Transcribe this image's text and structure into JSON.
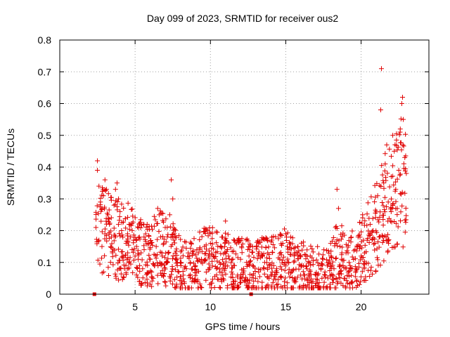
{
  "chart_data": {
    "type": "scatter",
    "title": "Day 099 of 2023, SRMTID for receiver ous2",
    "xlabel": "GPS time / hours",
    "ylabel": "SRMTID / TECUs",
    "xlim": [
      0,
      24.5
    ],
    "ylim": [
      0,
      0.8
    ],
    "x_ticks": [
      0,
      5,
      10,
      15,
      20
    ],
    "y_ticks": [
      0,
      0.1,
      0.2,
      0.3,
      0.4,
      0.5,
      0.6,
      0.7,
      0.8
    ],
    "grid": true,
    "marker": "plus",
    "color": "#e00000",
    "series": [
      {
        "name": "SRMTID",
        "points": [
          [
            2.4,
            0.21
          ],
          [
            2.5,
            0.42
          ],
          [
            2.5,
            0.39
          ],
          [
            2.6,
            0.34
          ],
          [
            2.7,
            0.29
          ],
          [
            2.8,
            0.27
          ],
          [
            2.9,
            0.31
          ],
          [
            3.0,
            0.36
          ],
          [
            3.1,
            0.33
          ],
          [
            3.2,
            0.25
          ],
          [
            2.6,
            0.17
          ],
          [
            2.8,
            0.15
          ],
          [
            3.0,
            0.19
          ],
          [
            3.3,
            0.22
          ],
          [
            3.5,
            0.13
          ],
          [
            3.6,
            0.28
          ],
          [
            3.7,
            0.33
          ],
          [
            3.8,
            0.35
          ],
          [
            3.9,
            0.3
          ],
          [
            4.0,
            0.26
          ],
          [
            4.1,
            0.2
          ],
          [
            4.2,
            0.12
          ],
          [
            4.3,
            0.08
          ],
          [
            4.4,
            0.16
          ],
          [
            4.5,
            0.19
          ],
          [
            4.6,
            0.22
          ],
          [
            4.7,
            0.18
          ],
          [
            4.8,
            0.14
          ],
          [
            4.9,
            0.17
          ],
          [
            5.0,
            0.12
          ],
          [
            5.1,
            0.15
          ],
          [
            5.2,
            0.11
          ],
          [
            5.3,
            0.09
          ],
          [
            5.4,
            0.13
          ],
          [
            5.5,
            0.08
          ],
          [
            5.6,
            0.14
          ],
          [
            5.7,
            0.19
          ],
          [
            5.8,
            0.22
          ],
          [
            5.9,
            0.16
          ],
          [
            6.0,
            0.11
          ],
          [
            6.1,
            0.07
          ],
          [
            6.2,
            0.05
          ],
          [
            6.3,
            0.09
          ],
          [
            6.4,
            0.15
          ],
          [
            6.5,
            0.27
          ],
          [
            6.6,
            0.25
          ],
          [
            6.7,
            0.18
          ],
          [
            6.8,
            0.12
          ],
          [
            6.9,
            0.16
          ],
          [
            7.0,
            0.21
          ],
          [
            7.1,
            0.1
          ],
          [
            7.2,
            0.13
          ],
          [
            7.3,
            0.25
          ],
          [
            7.4,
            0.36
          ],
          [
            7.5,
            0.3
          ],
          [
            7.6,
            0.19
          ],
          [
            7.7,
            0.11
          ],
          [
            7.8,
            0.09
          ],
          [
            7.9,
            0.07
          ],
          [
            8.0,
            0.1
          ],
          [
            8.2,
            0.06
          ],
          [
            8.4,
            0.08
          ],
          [
            8.6,
            0.12
          ],
          [
            8.8,
            0.05
          ],
          [
            9.0,
            0.09
          ],
          [
            9.2,
            0.13
          ],
          [
            9.4,
            0.11
          ],
          [
            9.6,
            0.15
          ],
          [
            9.8,
            0.2
          ],
          [
            10.0,
            0.16
          ],
          [
            10.2,
            0.12
          ],
          [
            10.4,
            0.08
          ],
          [
            10.6,
            0.1
          ],
          [
            10.8,
            0.18
          ],
          [
            11.0,
            0.23
          ],
          [
            11.2,
            0.12
          ],
          [
            11.4,
            0.07
          ],
          [
            11.6,
            0.09
          ],
          [
            11.8,
            0.06
          ],
          [
            12.0,
            0.11
          ],
          [
            12.2,
            0.08
          ],
          [
            12.4,
            0.1
          ],
          [
            12.6,
            0.14
          ],
          [
            12.8,
            0.09
          ],
          [
            13.0,
            0.05
          ],
          [
            13.2,
            0.07
          ],
          [
            13.4,
            0.12
          ],
          [
            13.6,
            0.1
          ],
          [
            13.8,
            0.13
          ],
          [
            14.0,
            0.06
          ],
          [
            14.2,
            0.09
          ],
          [
            14.4,
            0.08
          ],
          [
            14.6,
            0.11
          ],
          [
            14.8,
            0.16
          ],
          [
            15.0,
            0.19
          ],
          [
            15.1,
            0.15
          ],
          [
            15.2,
            0.1
          ],
          [
            15.4,
            0.07
          ],
          [
            15.6,
            0.05
          ],
          [
            15.8,
            0.13
          ],
          [
            16.0,
            0.09
          ],
          [
            16.2,
            0.06
          ],
          [
            16.4,
            0.08
          ],
          [
            16.6,
            0.1
          ],
          [
            16.8,
            0.04
          ],
          [
            17.0,
            0.06
          ],
          [
            17.2,
            0.09
          ],
          [
            17.4,
            0.05
          ],
          [
            17.6,
            0.07
          ],
          [
            17.8,
            0.1
          ],
          [
            18.0,
            0.12
          ],
          [
            18.2,
            0.08
          ],
          [
            18.3,
            0.21
          ],
          [
            18.4,
            0.33
          ],
          [
            18.5,
            0.27
          ],
          [
            18.6,
            0.15
          ],
          [
            18.7,
            0.11
          ],
          [
            18.8,
            0.09
          ],
          [
            19.0,
            0.13
          ],
          [
            19.2,
            0.1
          ],
          [
            19.4,
            0.08
          ],
          [
            19.6,
            0.14
          ],
          [
            19.8,
            0.18
          ],
          [
            20.0,
            0.12
          ],
          [
            20.1,
            0.25
          ],
          [
            20.2,
            0.08
          ],
          [
            20.4,
            0.17
          ],
          [
            20.6,
            0.22
          ],
          [
            20.8,
            0.2
          ],
          [
            21.0,
            0.26
          ],
          [
            21.1,
            0.31
          ],
          [
            21.2,
            0.18
          ],
          [
            21.3,
            0.58
          ],
          [
            21.35,
            0.71
          ],
          [
            21.5,
            0.35
          ],
          [
            21.6,
            0.41
          ],
          [
            21.7,
            0.47
          ],
          [
            21.8,
            0.29
          ],
          [
            22.0,
            0.37
          ],
          [
            22.1,
            0.5
          ],
          [
            22.2,
            0.45
          ],
          [
            22.3,
            0.33
          ],
          [
            22.4,
            0.27
          ],
          [
            22.5,
            0.39
          ],
          [
            22.6,
            0.52
          ],
          [
            22.7,
            0.6
          ],
          [
            22.75,
            0.62
          ],
          [
            22.8,
            0.55
          ],
          [
            22.9,
            0.43
          ],
          [
            23.0,
            0.38
          ]
        ]
      }
    ],
    "baseline_markers": [
      [
        2.3,
        0.0
      ],
      [
        12.7,
        0.0
      ]
    ],
    "envelope": [
      [
        2.4,
        0.19
      ],
      [
        3.0,
        0.21
      ],
      [
        3.5,
        0.18
      ],
      [
        4.0,
        0.16
      ],
      [
        4.5,
        0.17
      ],
      [
        5.0,
        0.14
      ],
      [
        5.5,
        0.13
      ],
      [
        6.0,
        0.12
      ],
      [
        6.5,
        0.15
      ],
      [
        7.0,
        0.14
      ],
      [
        7.5,
        0.12
      ],
      [
        8.0,
        0.09
      ],
      [
        8.5,
        0.08
      ],
      [
        9.0,
        0.09
      ],
      [
        9.5,
        0.11
      ],
      [
        10.0,
        0.12
      ],
      [
        10.5,
        0.1
      ],
      [
        11.0,
        0.1
      ],
      [
        11.5,
        0.09
      ],
      [
        12.0,
        0.09
      ],
      [
        12.5,
        0.09
      ],
      [
        13.0,
        0.08
      ],
      [
        13.5,
        0.09
      ],
      [
        14.0,
        0.09
      ],
      [
        14.5,
        0.1
      ],
      [
        15.0,
        0.11
      ],
      [
        15.5,
        0.09
      ],
      [
        16.0,
        0.08
      ],
      [
        16.5,
        0.08
      ],
      [
        17.0,
        0.07
      ],
      [
        17.5,
        0.07
      ],
      [
        18.0,
        0.08
      ],
      [
        18.5,
        0.13
      ],
      [
        19.0,
        0.1
      ],
      [
        19.5,
        0.11
      ],
      [
        20.0,
        0.13
      ],
      [
        20.5,
        0.17
      ],
      [
        21.0,
        0.21
      ],
      [
        21.5,
        0.27
      ],
      [
        22.0,
        0.3
      ],
      [
        22.5,
        0.34
      ],
      [
        23.0,
        0.36
      ]
    ]
  }
}
